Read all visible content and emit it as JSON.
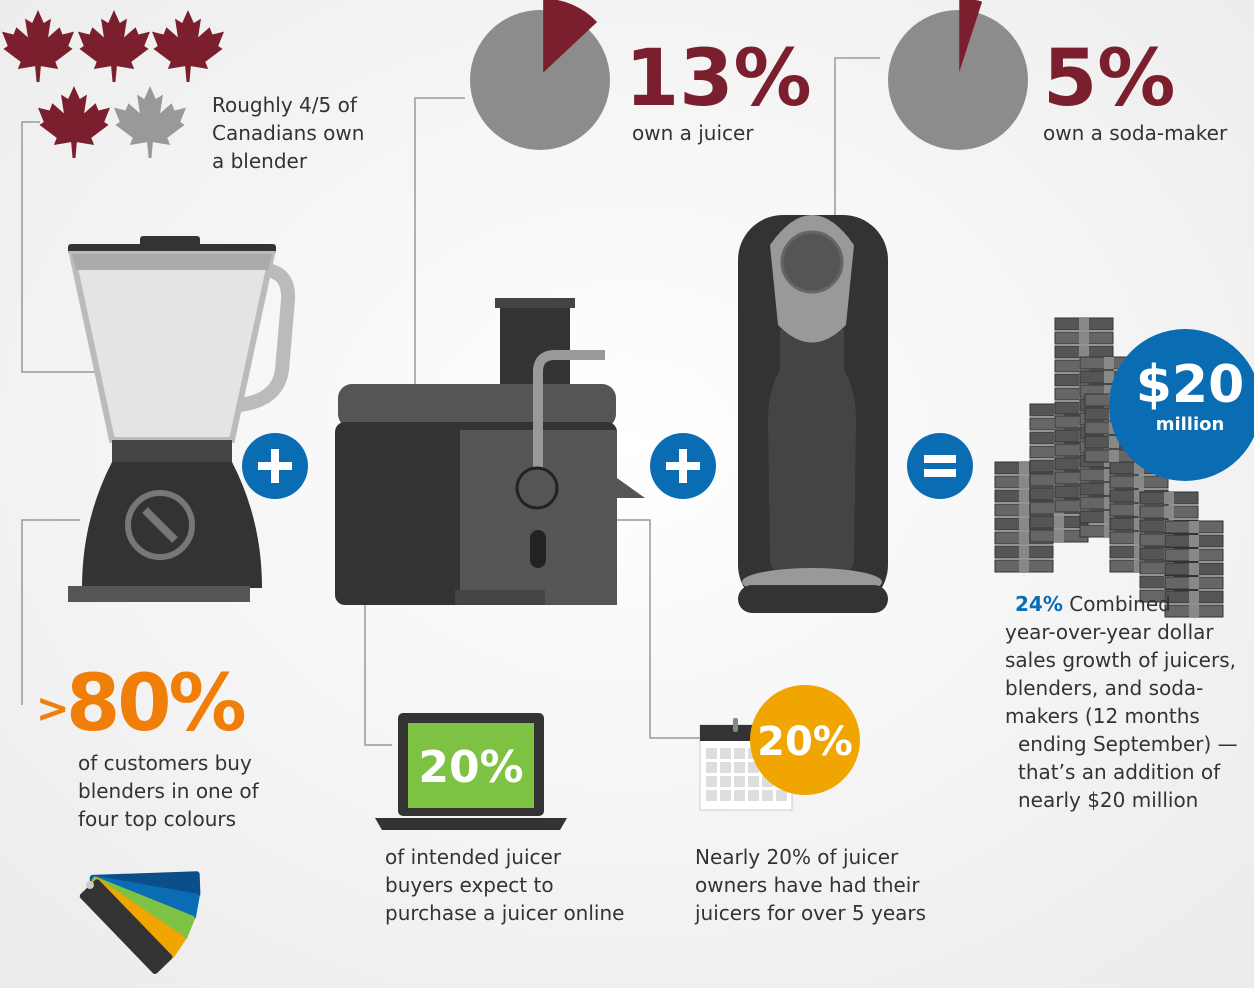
{
  "blender_ownership": {
    "lines": [
      "Roughly 4/5 of",
      "Canadians own",
      "a blender"
    ]
  },
  "juicer_ownership": {
    "value": 13,
    "value_label": "13%",
    "caption": "own a juicer"
  },
  "soda_maker_ownership": {
    "value": 5,
    "value_label": "5%",
    "caption": "own a soda-maker"
  },
  "total": {
    "amount": "$20",
    "unit": "million"
  },
  "colours": {
    "prefix": ">",
    "value": "80%",
    "lines": [
      "of customers buy",
      "blenders in one of",
      "four top colours"
    ]
  },
  "online": {
    "value": "20%",
    "lines": [
      "of intended juicer",
      "buyers expect to",
      "purchase a juicer online"
    ]
  },
  "ownership_duration": {
    "value": "20%",
    "lines": [
      "Nearly 20% of juicer",
      "owners have had their",
      "juicers for over 5 years"
    ]
  },
  "growth": {
    "value": "24%",
    "lead": "Combined",
    "lines": [
      "year-over-year dollar",
      "sales growth of juicers,",
      "blenders, and soda-",
      "makers (12 months",
      "ending September) —",
      "that’s an addition of",
      "nearly $20 million"
    ]
  }
}
